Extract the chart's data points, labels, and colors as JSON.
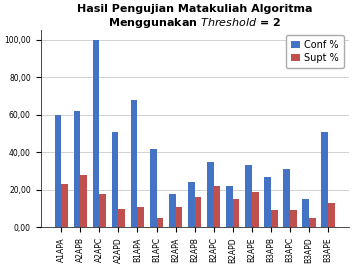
{
  "title_line1": "Hasil Pengujian Matakuliah Algoritma",
  "title_line2": "Menggunakan ",
  "title_italic": "Threshold",
  "title_end": " = 2",
  "categories": [
    "A1APA",
    "A2APB",
    "A2APC",
    "A2APD",
    "B1APA",
    "B1APC",
    "B2APA",
    "B2APB",
    "B2APC",
    "B2APD",
    "B2APE",
    "B3APB",
    "B3APC",
    "B3APD",
    "B3APE"
  ],
  "conf": [
    60,
    62,
    100,
    51,
    68,
    42,
    18,
    24,
    35,
    22,
    33,
    27,
    31,
    15,
    51
  ],
  "supt": [
    23,
    28,
    18,
    10,
    11,
    5,
    11,
    16,
    22,
    15,
    19,
    9,
    9,
    5,
    13
  ],
  "conf_color": "#4472C4",
  "supt_color": "#C0504D",
  "ylim": [
    0,
    105
  ],
  "yticks": [
    0,
    20,
    40,
    60,
    80,
    100
  ],
  "ytick_labels": [
    "0,00",
    "20,00",
    "40,00",
    "60,00",
    "80,00",
    "100,00"
  ],
  "legend_conf": "Conf %",
  "legend_supt": "Supt %",
  "bg_color": "#FFFFFF",
  "plot_bg_color": "#FFFFFF",
  "bar_width": 0.35,
  "title_fontsize": 8,
  "tick_fontsize": 5.5,
  "legend_fontsize": 7
}
